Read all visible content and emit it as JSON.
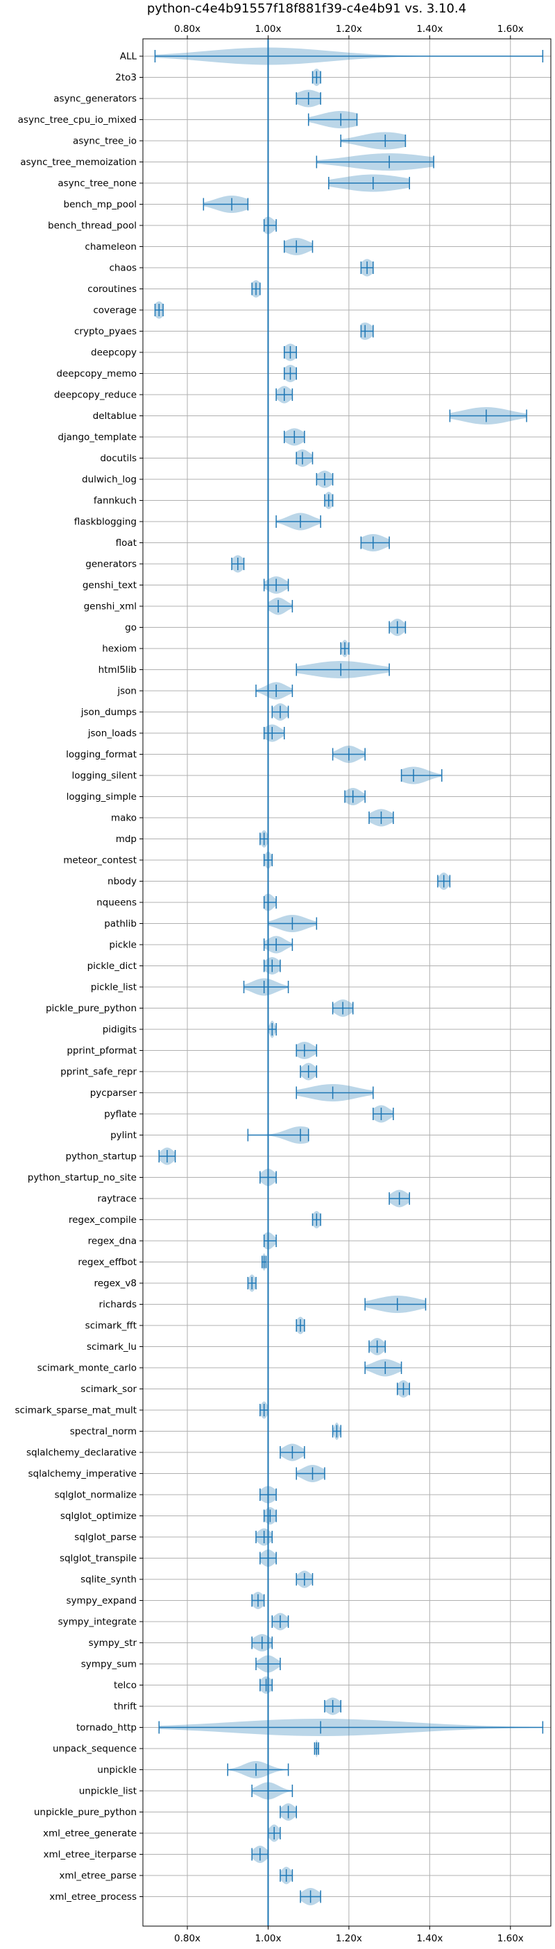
{
  "chart_data": {
    "type": "violin",
    "orientation": "horizontal",
    "title": "python-c4e4b91557f18f881f39-c4e4b91 vs. 3.10.4",
    "xlabel": "",
    "ylabel": "",
    "xlim": [
      0.69,
      1.7
    ],
    "x_ticks": [
      0.8,
      1.0,
      1.2,
      1.4,
      1.6
    ],
    "x_tick_labels": [
      "0.80x",
      "1.00x",
      "1.20x",
      "1.40x",
      "1.60x"
    ],
    "reference_line": 1.0,
    "grid": true,
    "colors": {
      "violin": "#1f77b4",
      "reference": "#1f77b4",
      "grid": "#b0b0b0"
    },
    "benchmarks": [
      {
        "name": "ALL",
        "min": 0.72,
        "max": 1.68,
        "median": 1.0,
        "spread": 0.15
      },
      {
        "name": "2to3",
        "min": 1.11,
        "max": 1.13,
        "median": 1.12,
        "spread": 0.01
      },
      {
        "name": "async_generators",
        "min": 1.07,
        "max": 1.13,
        "median": 1.1,
        "spread": 0.03
      },
      {
        "name": "async_tree_cpu_io_mixed",
        "min": 1.1,
        "max": 1.22,
        "median": 1.18,
        "spread": 0.05
      },
      {
        "name": "async_tree_io",
        "min": 1.18,
        "max": 1.34,
        "median": 1.29,
        "spread": 0.06
      },
      {
        "name": "async_tree_memoization",
        "min": 1.12,
        "max": 1.41,
        "median": 1.3,
        "spread": 0.1
      },
      {
        "name": "async_tree_none",
        "min": 1.15,
        "max": 1.35,
        "median": 1.26,
        "spread": 0.08
      },
      {
        "name": "bench_mp_pool",
        "min": 0.84,
        "max": 0.95,
        "median": 0.91,
        "spread": 0.04
      },
      {
        "name": "bench_thread_pool",
        "min": 0.99,
        "max": 1.02,
        "median": 1.0,
        "spread": 0.015
      },
      {
        "name": "chameleon",
        "min": 1.04,
        "max": 1.11,
        "median": 1.07,
        "spread": 0.03
      },
      {
        "name": "chaos",
        "min": 1.23,
        "max": 1.26,
        "median": 1.245,
        "spread": 0.015
      },
      {
        "name": "coroutines",
        "min": 0.96,
        "max": 0.98,
        "median": 0.97,
        "spread": 0.012
      },
      {
        "name": "coverage",
        "min": 0.72,
        "max": 0.74,
        "median": 0.73,
        "spread": 0.012
      },
      {
        "name": "crypto_pyaes",
        "min": 1.23,
        "max": 1.26,
        "median": 1.24,
        "spread": 0.018
      },
      {
        "name": "deepcopy",
        "min": 1.04,
        "max": 1.07,
        "median": 1.055,
        "spread": 0.016
      },
      {
        "name": "deepcopy_memo",
        "min": 1.04,
        "max": 1.07,
        "median": 1.055,
        "spread": 0.016
      },
      {
        "name": "deepcopy_reduce",
        "min": 1.02,
        "max": 1.06,
        "median": 1.04,
        "spread": 0.016
      },
      {
        "name": "deltablue",
        "min": 1.45,
        "max": 1.64,
        "median": 1.54,
        "spread": 0.06
      },
      {
        "name": "django_template",
        "min": 1.04,
        "max": 1.09,
        "median": 1.065,
        "spread": 0.022
      },
      {
        "name": "docutils",
        "min": 1.07,
        "max": 1.11,
        "median": 1.085,
        "spread": 0.018
      },
      {
        "name": "dulwich_log",
        "min": 1.12,
        "max": 1.16,
        "median": 1.14,
        "spread": 0.018
      },
      {
        "name": "fannkuch",
        "min": 1.14,
        "max": 1.16,
        "median": 1.15,
        "spread": 0.01
      },
      {
        "name": "flaskblogging",
        "min": 1.02,
        "max": 1.13,
        "median": 1.08,
        "spread": 0.03
      },
      {
        "name": "float",
        "min": 1.23,
        "max": 1.3,
        "median": 1.26,
        "spread": 0.03
      },
      {
        "name": "generators",
        "min": 0.91,
        "max": 0.94,
        "median": 0.925,
        "spread": 0.014
      },
      {
        "name": "genshi_text",
        "min": 0.99,
        "max": 1.05,
        "median": 1.02,
        "spread": 0.022
      },
      {
        "name": "genshi_xml",
        "min": 1.0,
        "max": 1.06,
        "median": 1.025,
        "spread": 0.02
      },
      {
        "name": "go",
        "min": 1.3,
        "max": 1.34,
        "median": 1.32,
        "spread": 0.016
      },
      {
        "name": "hexiom",
        "min": 1.18,
        "max": 1.2,
        "median": 1.19,
        "spread": 0.008
      },
      {
        "name": "html5lib",
        "min": 1.07,
        "max": 1.3,
        "median": 1.18,
        "spread": 0.08
      },
      {
        "name": "json",
        "min": 0.97,
        "max": 1.06,
        "median": 1.02,
        "spread": 0.025
      },
      {
        "name": "json_dumps",
        "min": 1.01,
        "max": 1.05,
        "median": 1.03,
        "spread": 0.016
      },
      {
        "name": "json_loads",
        "min": 0.99,
        "max": 1.04,
        "median": 1.01,
        "spread": 0.02
      },
      {
        "name": "logging_format",
        "min": 1.16,
        "max": 1.24,
        "median": 1.2,
        "spread": 0.025
      },
      {
        "name": "logging_silent",
        "min": 1.33,
        "max": 1.43,
        "median": 1.36,
        "spread": 0.035
      },
      {
        "name": "logging_simple",
        "min": 1.19,
        "max": 1.24,
        "median": 1.21,
        "spread": 0.02
      },
      {
        "name": "mako",
        "min": 1.25,
        "max": 1.31,
        "median": 1.28,
        "spread": 0.025
      },
      {
        "name": "mdp",
        "min": 0.98,
        "max": 1.0,
        "median": 0.99,
        "spread": 0.008
      },
      {
        "name": "meteor_contest",
        "min": 0.99,
        "max": 1.01,
        "median": 1.0,
        "spread": 0.008
      },
      {
        "name": "nbody",
        "min": 1.42,
        "max": 1.45,
        "median": 1.435,
        "spread": 0.012
      },
      {
        "name": "nqueens",
        "min": 0.99,
        "max": 1.02,
        "median": 1.0,
        "spread": 0.014
      },
      {
        "name": "pathlib",
        "min": 1.0,
        "max": 1.12,
        "median": 1.06,
        "spread": 0.035
      },
      {
        "name": "pickle",
        "min": 0.99,
        "max": 1.06,
        "median": 1.02,
        "spread": 0.022
      },
      {
        "name": "pickle_dict",
        "min": 0.99,
        "max": 1.03,
        "median": 1.01,
        "spread": 0.018
      },
      {
        "name": "pickle_list",
        "min": 0.94,
        "max": 1.05,
        "median": 0.99,
        "spread": 0.03
      },
      {
        "name": "pickle_pure_python",
        "min": 1.16,
        "max": 1.21,
        "median": 1.185,
        "spread": 0.02
      },
      {
        "name": "pidigits",
        "min": 1.0,
        "max": 1.02,
        "median": 1.01,
        "spread": 0.006
      },
      {
        "name": "pprint_pformat",
        "min": 1.07,
        "max": 1.12,
        "median": 1.09,
        "spread": 0.022
      },
      {
        "name": "pprint_safe_repr",
        "min": 1.08,
        "max": 1.12,
        "median": 1.1,
        "spread": 0.016
      },
      {
        "name": "pycparser",
        "min": 1.07,
        "max": 1.26,
        "median": 1.16,
        "spread": 0.06
      },
      {
        "name": "pyflate",
        "min": 1.26,
        "max": 1.31,
        "median": 1.28,
        "spread": 0.02
      },
      {
        "name": "pylint",
        "min": 0.95,
        "max": 1.1,
        "median": 1.08,
        "spread": 0.035
      },
      {
        "name": "python_startup",
        "min": 0.73,
        "max": 0.77,
        "median": 0.75,
        "spread": 0.016
      },
      {
        "name": "python_startup_no_site",
        "min": 0.98,
        "max": 1.02,
        "median": 1.0,
        "spread": 0.016
      },
      {
        "name": "raytrace",
        "min": 1.3,
        "max": 1.35,
        "median": 1.325,
        "spread": 0.02
      },
      {
        "name": "regex_compile",
        "min": 1.11,
        "max": 1.13,
        "median": 1.12,
        "spread": 0.01
      },
      {
        "name": "regex_dna",
        "min": 0.99,
        "max": 1.02,
        "median": 1.0,
        "spread": 0.014
      },
      {
        "name": "regex_effbot",
        "min": 0.985,
        "max": 0.995,
        "median": 0.99,
        "spread": 0.004
      },
      {
        "name": "regex_v8",
        "min": 0.95,
        "max": 0.97,
        "median": 0.96,
        "spread": 0.008
      },
      {
        "name": "richards",
        "min": 1.24,
        "max": 1.39,
        "median": 1.32,
        "spread": 0.055
      },
      {
        "name": "scimark_fft",
        "min": 1.07,
        "max": 1.09,
        "median": 1.08,
        "spread": 0.01
      },
      {
        "name": "scimark_lu",
        "min": 1.25,
        "max": 1.29,
        "median": 1.27,
        "spread": 0.016
      },
      {
        "name": "scimark_monte_carlo",
        "min": 1.24,
        "max": 1.33,
        "median": 1.29,
        "spread": 0.03
      },
      {
        "name": "scimark_sor",
        "min": 1.32,
        "max": 1.35,
        "median": 1.335,
        "spread": 0.014
      },
      {
        "name": "scimark_sparse_mat_mult",
        "min": 0.98,
        "max": 1.0,
        "median": 0.99,
        "spread": 0.008
      },
      {
        "name": "spectral_norm",
        "min": 1.16,
        "max": 1.18,
        "median": 1.17,
        "spread": 0.006
      },
      {
        "name": "sqlalchemy_declarative",
        "min": 1.03,
        "max": 1.09,
        "median": 1.06,
        "spread": 0.022
      },
      {
        "name": "sqlalchemy_imperative",
        "min": 1.07,
        "max": 1.14,
        "median": 1.11,
        "spread": 0.025
      },
      {
        "name": "sqlglot_normalize",
        "min": 0.98,
        "max": 1.02,
        "median": 1.0,
        "spread": 0.018
      },
      {
        "name": "sqlglot_optimize",
        "min": 0.99,
        "max": 1.02,
        "median": 1.005,
        "spread": 0.014
      },
      {
        "name": "sqlglot_parse",
        "min": 0.97,
        "max": 1.01,
        "median": 0.99,
        "spread": 0.016
      },
      {
        "name": "sqlglot_transpile",
        "min": 0.98,
        "max": 1.02,
        "median": 1.0,
        "spread": 0.016
      },
      {
        "name": "sqlite_synth",
        "min": 1.07,
        "max": 1.11,
        "median": 1.09,
        "spread": 0.016
      },
      {
        "name": "sympy_expand",
        "min": 0.96,
        "max": 0.99,
        "median": 0.975,
        "spread": 0.014
      },
      {
        "name": "sympy_integrate",
        "min": 1.01,
        "max": 1.05,
        "median": 1.03,
        "spread": 0.016
      },
      {
        "name": "sympy_str",
        "min": 0.96,
        "max": 1.01,
        "median": 0.985,
        "spread": 0.02
      },
      {
        "name": "sympy_sum",
        "min": 0.97,
        "max": 1.03,
        "median": 1.0,
        "spread": 0.02
      },
      {
        "name": "telco",
        "min": 0.98,
        "max": 1.01,
        "median": 0.995,
        "spread": 0.014
      },
      {
        "name": "thrift",
        "min": 1.14,
        "max": 1.18,
        "median": 1.16,
        "spread": 0.018
      },
      {
        "name": "tornado_http",
        "min": 0.73,
        "max": 1.68,
        "median": 1.13,
        "spread": 0.22
      },
      {
        "name": "unpack_sequence",
        "min": 1.115,
        "max": 1.125,
        "median": 1.12,
        "spread": 0.003
      },
      {
        "name": "unpickle",
        "min": 0.9,
        "max": 1.05,
        "median": 0.97,
        "spread": 0.03
      },
      {
        "name": "unpickle_list",
        "min": 0.96,
        "max": 1.06,
        "median": 1.0,
        "spread": 0.025
      },
      {
        "name": "unpickle_pure_python",
        "min": 1.03,
        "max": 1.07,
        "median": 1.05,
        "spread": 0.016
      },
      {
        "name": "xml_etree_generate",
        "min": 1.0,
        "max": 1.03,
        "median": 1.015,
        "spread": 0.012
      },
      {
        "name": "xml_etree_iterparse",
        "min": 0.96,
        "max": 1.0,
        "median": 0.98,
        "spread": 0.016
      },
      {
        "name": "xml_etree_parse",
        "min": 1.03,
        "max": 1.06,
        "median": 1.045,
        "spread": 0.012
      },
      {
        "name": "xml_etree_process",
        "min": 1.08,
        "max": 1.13,
        "median": 1.105,
        "spread": 0.02
      }
    ]
  }
}
